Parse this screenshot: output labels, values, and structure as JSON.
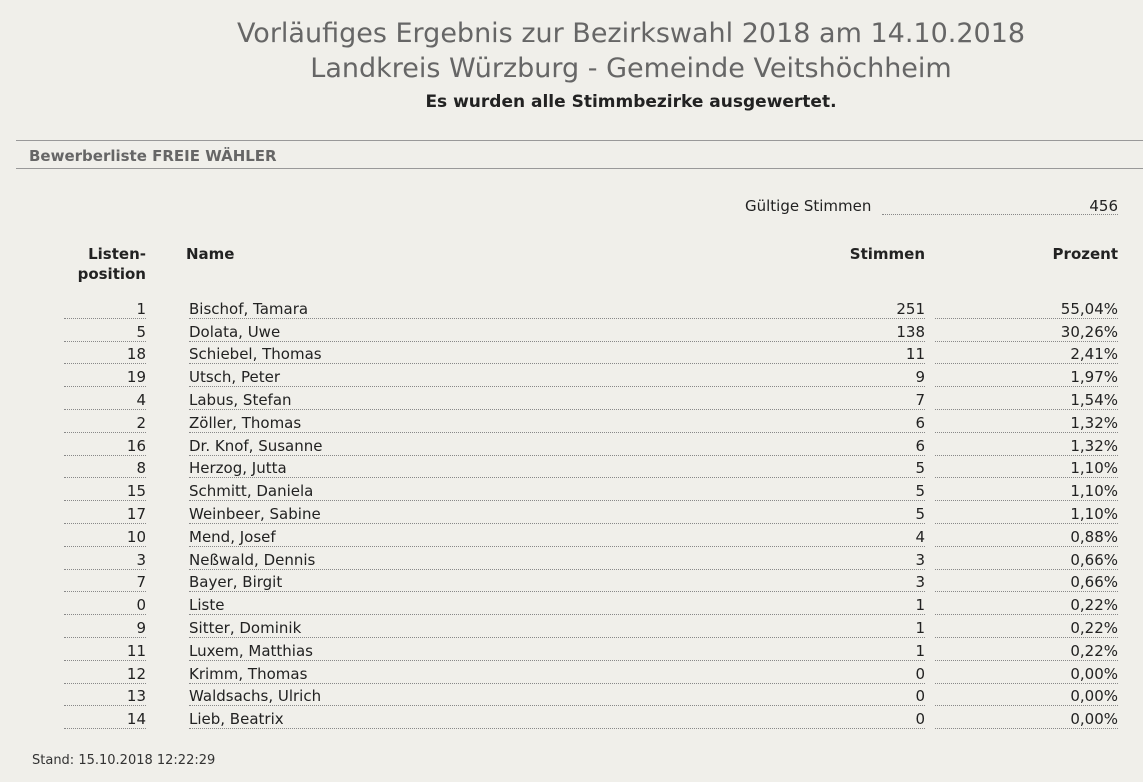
{
  "header": {
    "title_line1": "Vorläufiges Ergebnis zur Bezirkswahl 2018 am 14.10.2018",
    "title_line2": "Landkreis Würzburg - Gemeinde Veitshöchheim",
    "subtitle": "Es wurden alle Stimmbezirke ausgewertet."
  },
  "section": {
    "title": "Bewerberliste FREIE WÄHLER"
  },
  "summary": {
    "valid_votes_label": "Gültige Stimmen",
    "valid_votes_value": "456"
  },
  "table": {
    "columns": {
      "position": "Listen-\nposition",
      "name": "Name",
      "votes": "Stimmen",
      "percent": "Prozent"
    },
    "rows": [
      {
        "position": "1",
        "name": "Bischof, Tamara",
        "votes": "251",
        "percent": "55,04%"
      },
      {
        "position": "5",
        "name": "Dolata, Uwe",
        "votes": "138",
        "percent": "30,26%"
      },
      {
        "position": "18",
        "name": "Schiebel, Thomas",
        "votes": "11",
        "percent": "2,41%"
      },
      {
        "position": "19",
        "name": "Utsch, Peter",
        "votes": "9",
        "percent": "1,97%"
      },
      {
        "position": "4",
        "name": "Labus, Stefan",
        "votes": "7",
        "percent": "1,54%"
      },
      {
        "position": "2",
        "name": "Zöller, Thomas",
        "votes": "6",
        "percent": "1,32%"
      },
      {
        "position": "16",
        "name": "Dr. Knof, Susanne",
        "votes": "6",
        "percent": "1,32%"
      },
      {
        "position": "8",
        "name": "Herzog, Jutta",
        "votes": "5",
        "percent": "1,10%"
      },
      {
        "position": "15",
        "name": "Schmitt, Daniela",
        "votes": "5",
        "percent": "1,10%"
      },
      {
        "position": "17",
        "name": "Weinbeer, Sabine",
        "votes": "5",
        "percent": "1,10%"
      },
      {
        "position": "10",
        "name": "Mend, Josef",
        "votes": "4",
        "percent": "0,88%"
      },
      {
        "position": "3",
        "name": "Neßwald, Dennis",
        "votes": "3",
        "percent": "0,66%"
      },
      {
        "position": "7",
        "name": "Bayer, Birgit",
        "votes": "3",
        "percent": "0,66%"
      },
      {
        "position": "0",
        "name": "Liste",
        "votes": "1",
        "percent": "0,22%"
      },
      {
        "position": "9",
        "name": "Sitter, Dominik",
        "votes": "1",
        "percent": "0,22%"
      },
      {
        "position": "11",
        "name": "Luxem, Matthias",
        "votes": "1",
        "percent": "0,22%"
      },
      {
        "position": "12",
        "name": "Krimm, Thomas",
        "votes": "0",
        "percent": "0,00%"
      },
      {
        "position": "13",
        "name": "Waldsachs, Ulrich",
        "votes": "0",
        "percent": "0,00%"
      },
      {
        "position": "14",
        "name": "Lieb, Beatrix",
        "votes": "0",
        "percent": "0,00%"
      }
    ]
  },
  "footer": {
    "stand": "Stand: 15.10.2018 12:22:29"
  }
}
